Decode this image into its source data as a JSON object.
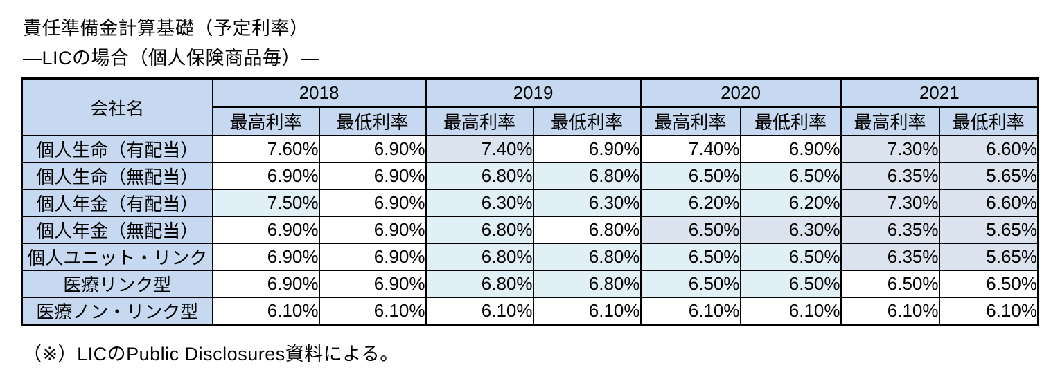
{
  "title": "責任準備金計算基礎（予定利率）",
  "subtitle": "―LICの場合（個人保険商品毎）―",
  "footnote": "（※）LICのPublic Disclosures資料による。",
  "colors": {
    "header_fill": "#c6d9f0",
    "cell_shade_light_blue": "#e1eff7",
    "cell_shade_gray_blue": "#dbe3ef",
    "border": "#000000",
    "background": "#ffffff"
  },
  "table": {
    "corner_header": "会社名",
    "year_groups": [
      "2018",
      "2019",
      "2020",
      "2021"
    ],
    "sub_headers": [
      "最高利率",
      "最低利率"
    ],
    "rows": [
      {
        "label": "個人生命（有配当）",
        "values": [
          "7.60%",
          "6.90%",
          "7.40%",
          "6.90%",
          "7.40%",
          "6.90%",
          "7.30%",
          "6.60%"
        ],
        "shades": [
          "w",
          "w",
          "b",
          "w",
          "w",
          "w",
          "b",
          "b"
        ]
      },
      {
        "label": "個人生命（無配当）",
        "values": [
          "6.90%",
          "6.90%",
          "6.80%",
          "6.80%",
          "6.50%",
          "6.50%",
          "6.35%",
          "5.65%"
        ],
        "shades": [
          "w",
          "w",
          "a",
          "a",
          "a",
          "a",
          "b",
          "b"
        ]
      },
      {
        "label": "個人年金（有配当）",
        "values": [
          "7.50%",
          "6.90%",
          "6.30%",
          "6.30%",
          "6.20%",
          "6.20%",
          "7.30%",
          "6.60%"
        ],
        "shades": [
          "a",
          "w",
          "a",
          "a",
          "a",
          "a",
          "b",
          "b"
        ]
      },
      {
        "label": "個人年金（無配当）",
        "values": [
          "6.90%",
          "6.90%",
          "6.80%",
          "6.80%",
          "6.50%",
          "6.30%",
          "6.35%",
          "5.65%"
        ],
        "shades": [
          "w",
          "w",
          "a",
          "w",
          "b",
          "b",
          "b",
          "b"
        ]
      },
      {
        "label": "個人ユニット・リンク",
        "values": [
          "6.90%",
          "6.90%",
          "6.80%",
          "6.80%",
          "6.50%",
          "6.50%",
          "6.35%",
          "5.65%"
        ],
        "shades": [
          "w",
          "w",
          "a",
          "a",
          "a",
          "a",
          "b",
          "b"
        ]
      },
      {
        "label": "医療リンク型",
        "values": [
          "6.90%",
          "6.90%",
          "6.80%",
          "6.80%",
          "6.50%",
          "6.50%",
          "6.50%",
          "6.50%"
        ],
        "shades": [
          "w",
          "w",
          "a",
          "a",
          "a",
          "a",
          "w",
          "w"
        ]
      },
      {
        "label": "医療ノン・リンク型",
        "values": [
          "6.10%",
          "6.10%",
          "6.10%",
          "6.10%",
          "6.10%",
          "6.10%",
          "6.10%",
          "6.10%"
        ],
        "shades": [
          "w",
          "w",
          "w",
          "w",
          "w",
          "w",
          "w",
          "w"
        ]
      }
    ]
  },
  "chart_data": {
    "type": "table",
    "title": "責任準備金計算基礎（予定利率）―LICの場合（個人保険商品毎）―",
    "column_groups": [
      "2018",
      "2019",
      "2020",
      "2021"
    ],
    "columns": [
      "2018 最高利率",
      "2018 最低利率",
      "2019 最高利率",
      "2019 最低利率",
      "2020 最高利率",
      "2020 最低利率",
      "2021 最高利率",
      "2021 最低利率"
    ],
    "row_labels": [
      "個人生命（有配当）",
      "個人生命（無配当）",
      "個人年金（有配当）",
      "個人年金（無配当）",
      "個人ユニット・リンク",
      "医療リンク型",
      "医療ノン・リンク型"
    ],
    "values_percent": [
      [
        7.6,
        6.9,
        7.4,
        6.9,
        7.4,
        6.9,
        7.3,
        6.6
      ],
      [
        6.9,
        6.9,
        6.8,
        6.8,
        6.5,
        6.5,
        6.35,
        5.65
      ],
      [
        7.5,
        6.9,
        6.3,
        6.3,
        6.2,
        6.2,
        7.3,
        6.6
      ],
      [
        6.9,
        6.9,
        6.8,
        6.8,
        6.5,
        6.3,
        6.35,
        5.65
      ],
      [
        6.9,
        6.9,
        6.8,
        6.8,
        6.5,
        6.5,
        6.35,
        5.65
      ],
      [
        6.9,
        6.9,
        6.8,
        6.8,
        6.5,
        6.5,
        6.5,
        6.5
      ],
      [
        6.1,
        6.1,
        6.1,
        6.1,
        6.1,
        6.1,
        6.1,
        6.1
      ]
    ],
    "footnote": "（※）LICのPublic Disclosures資料による。"
  }
}
